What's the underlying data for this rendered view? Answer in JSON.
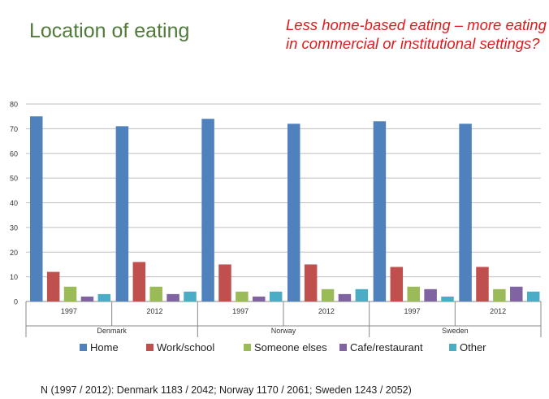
{
  "slide": {
    "title": "Location of eating",
    "subtitle": "Less home-based eating – more eating in commercial or institutional settings?",
    "note": "N (1997 / 2012): Denmark 1183 / 2042; Norway 1170 / 2061; Sweden 1243 / 2052)"
  },
  "chart_data": {
    "type": "bar",
    "ylim": [
      0,
      80
    ],
    "yticks": [
      0,
      10,
      20,
      30,
      40,
      50,
      60,
      70,
      80
    ],
    "grid": true,
    "legend_position": "bottom",
    "groups": [
      {
        "country": "Denmark",
        "years": [
          "1997",
          "2012"
        ]
      },
      {
        "country": "Norway",
        "years": [
          "1997",
          "2012"
        ]
      },
      {
        "country": "Sweden",
        "years": [
          "1997",
          "2012"
        ]
      }
    ],
    "categories": [
      "Denmark 1997",
      "Denmark 2012",
      "Norway 1997",
      "Norway 2012",
      "Sweden 1997",
      "Sweden 2012"
    ],
    "series": [
      {
        "name": "Home",
        "color": "#4f81bd",
        "values": [
          75,
          71,
          74,
          72,
          73,
          72
        ]
      },
      {
        "name": "Work/school",
        "color": "#c0504d",
        "values": [
          12,
          16,
          15,
          15,
          14,
          14
        ]
      },
      {
        "name": "Someone elses",
        "color": "#9bbb59",
        "values": [
          6,
          6,
          4,
          5,
          6,
          5
        ]
      },
      {
        "name": "Cafe/restaurant",
        "color": "#8064a2",
        "values": [
          2,
          3,
          2,
          3,
          5,
          6
        ]
      },
      {
        "name": "Other",
        "color": "#4bacc6",
        "values": [
          3,
          4,
          4,
          5,
          2,
          4
        ]
      }
    ]
  }
}
